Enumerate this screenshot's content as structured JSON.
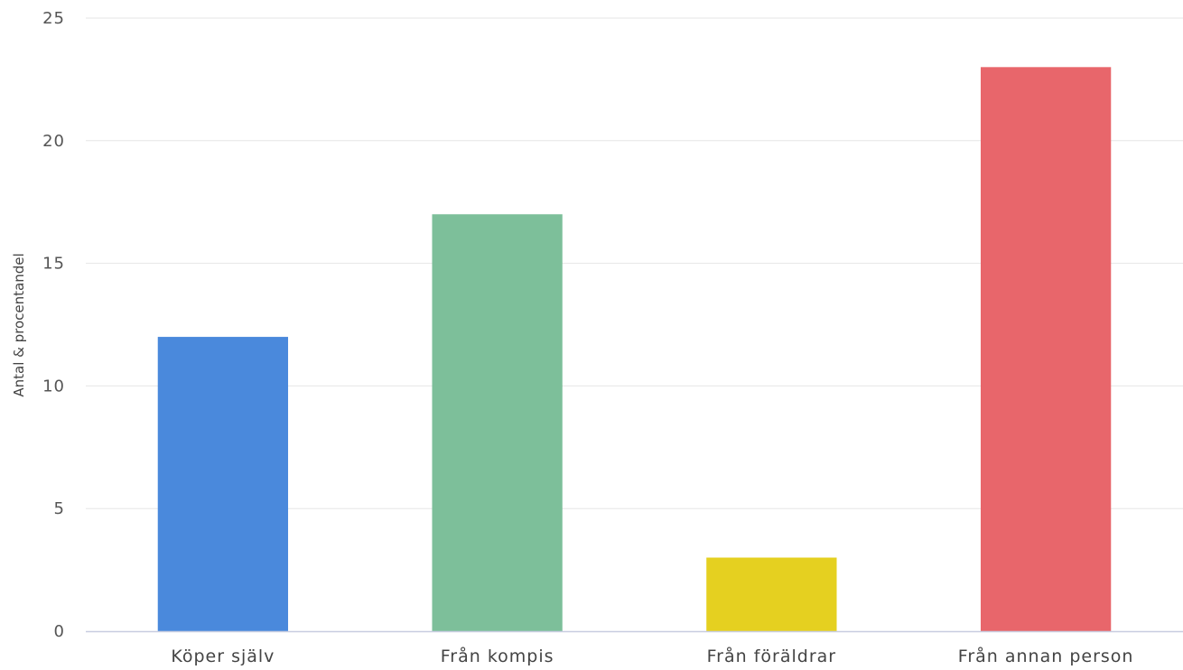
{
  "chart_data": {
    "type": "bar",
    "title": "",
    "xlabel": "",
    "ylabel": "Antal & procentandel",
    "categories": [
      "Köper själv",
      "Från kompis",
      "Från föräldrar",
      "Från annan person"
    ],
    "values": [
      12,
      17,
      3,
      23
    ],
    "colors": [
      "#4a89dc",
      "#7dbf9a",
      "#e5d020",
      "#e8666b"
    ],
    "ylim": [
      0,
      25
    ],
    "yticks": [
      0,
      5,
      10,
      15,
      20,
      25
    ],
    "grid": true,
    "legend": "none"
  }
}
